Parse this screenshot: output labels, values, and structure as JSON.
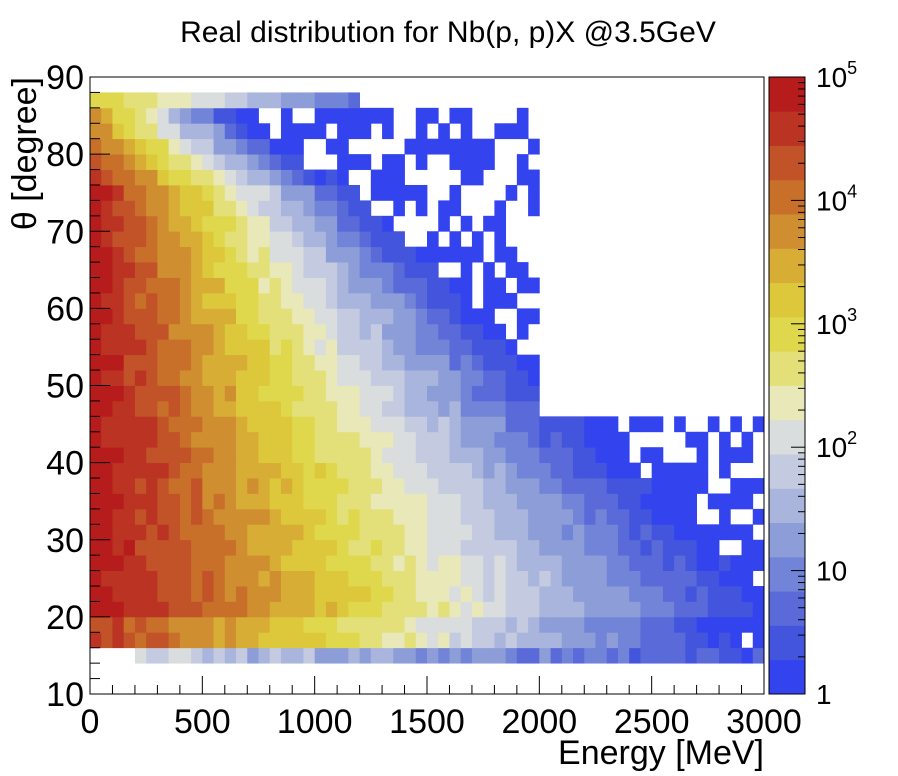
{
  "chart_data": {
    "type": "heatmap",
    "title": "Real distribution for Nb(p, p)X @3.5GeV",
    "xlabel": "Energy [MeV]",
    "ylabel": "θ [degree]",
    "xlim": [
      0,
      3000
    ],
    "ylim": [
      10,
      90
    ],
    "x_ticks": [
      0,
      500,
      1000,
      1500,
      2000,
      2500,
      3000
    ],
    "y_ticks": [
      10,
      20,
      30,
      40,
      50,
      60,
      70,
      80,
      90
    ],
    "z_scale": "log",
    "zlim": [
      1,
      100000
    ],
    "colorbar_ticks": [
      {
        "base": "1",
        "exp": ""
      },
      {
        "base": "10",
        "exp": ""
      },
      {
        "base": "10",
        "exp": "2"
      },
      {
        "base": "10",
        "exp": "3"
      },
      {
        "base": "10",
        "exp": "4"
      },
      {
        "base": "10",
        "exp": "5"
      }
    ],
    "colormap": [
      "#3344ee",
      "#4455dd",
      "#5a6ad8",
      "#7284d8",
      "#8d9dd8",
      "#a9b5dc",
      "#c4cbe0",
      "#dadddd",
      "#e8e8b8",
      "#e3e07a",
      "#e0d84c",
      "#dcc83a",
      "#d8ad35",
      "#cf8e30",
      "#c8702a",
      "#c25228",
      "#bb3322",
      "#b71c1c"
    ],
    "x_bin_width": 50,
    "y_bin_width": 2,
    "y_range_covered": [
      14,
      88
    ],
    "description": "Counts per (energy, angle) bin; highest (~1e5) at low energy and 20-80 degrees, falling toward high energy and large angles; data above 45 degrees stops near 2000 MeV."
  }
}
